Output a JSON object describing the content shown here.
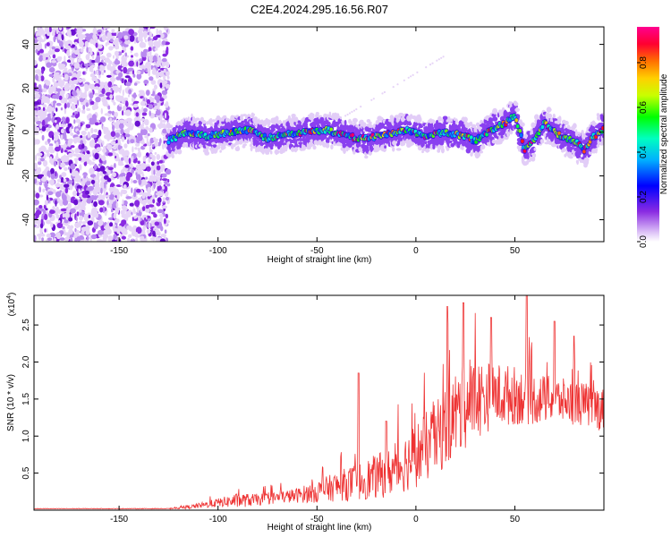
{
  "title": "C2E4.2024.295.16.56.R07",
  "chart_data": [
    {
      "type": "heatmap",
      "xlabel": "Height of straight line (km)",
      "ylabel": "Frequency (Hz)",
      "xlim": [
        -193,
        95
      ],
      "ylim": [
        -50,
        48
      ],
      "xticks": [
        -150,
        -100,
        -50,
        0,
        50
      ],
      "yticks": [
        -40,
        -20,
        0,
        20,
        40
      ],
      "colorbar": {
        "label": "Normalized spectral amplitude",
        "range": [
          0.0,
          0.96
        ],
        "ticks": [
          "0.0",
          "0.2",
          "0.4",
          "0.6",
          "0.8"
        ],
        "colors": [
          "#e8d8f8",
          "#7b2cf0",
          "#0000ff",
          "#00c8ff",
          "#00ff60",
          "#c8ff00",
          "#ff9000",
          "#ff0040",
          "#ff00a0"
        ]
      },
      "ridge": {
        "x": [
          -125,
          -115,
          -105,
          -95,
          -85,
          -75,
          -65,
          -55,
          -45,
          -35,
          -25,
          -15,
          -5,
          5,
          15,
          25,
          30,
          35,
          40,
          45,
          50,
          55,
          60,
          65,
          70,
          75,
          80,
          85,
          90,
          95
        ],
        "y": [
          -4,
          0,
          -2,
          0,
          1,
          -3,
          -1,
          0,
          1,
          -2,
          -3,
          -1,
          1,
          -2,
          0,
          -2,
          -4,
          -1,
          2,
          4,
          8,
          -8,
          -3,
          4,
          0,
          -3,
          -4,
          -8,
          -2,
          2
        ]
      }
    },
    {
      "type": "line",
      "xlabel": "Height of straight line (km)",
      "ylabel": "SNR (10 * v/v)",
      "yexp": "(x10",
      "yexp_sup": "4",
      "yexp_close": ")",
      "xlim": [
        -193,
        95
      ],
      "ylim": [
        0,
        2.9
      ],
      "xticks": [
        -150,
        -100,
        -50,
        0,
        50
      ],
      "yticks": [
        "0.5",
        "1.0",
        "1.5",
        "2.0",
        "2.5"
      ],
      "color": "#ee3333",
      "envelope": {
        "x": [
          -193,
          -125,
          -112,
          -100,
          -90,
          -80,
          -70,
          -60,
          -50,
          -40,
          -30,
          -20,
          -10,
          0,
          10,
          20,
          30,
          40,
          50,
          60,
          70,
          80,
          90,
          95
        ],
        "mean": [
          0.02,
          0.02,
          0.05,
          0.1,
          0.13,
          0.14,
          0.17,
          0.2,
          0.25,
          0.32,
          0.38,
          0.45,
          0.55,
          0.75,
          0.95,
          1.3,
          1.5,
          1.55,
          1.55,
          1.5,
          1.5,
          1.45,
          1.4,
          1.35
        ],
        "spread": [
          0.003,
          0.005,
          0.03,
          0.06,
          0.1,
          0.08,
          0.08,
          0.1,
          0.15,
          0.2,
          0.25,
          0.3,
          0.35,
          0.45,
          0.5,
          0.6,
          0.55,
          0.45,
          0.4,
          0.35,
          0.3,
          0.3,
          0.3,
          0.3
        ]
      },
      "peaks": [
        {
          "x": -29,
          "y": 1.85
        },
        {
          "x": -15,
          "y": 1.2
        },
        {
          "x": 16,
          "y": 2.75
        },
        {
          "x": 24,
          "y": 2.8
        },
        {
          "x": 38,
          "y": 2.6
        },
        {
          "x": 56,
          "y": 2.9
        },
        {
          "x": 70,
          "y": 2.55
        },
        {
          "x": 80,
          "y": 2.35
        }
      ]
    }
  ]
}
